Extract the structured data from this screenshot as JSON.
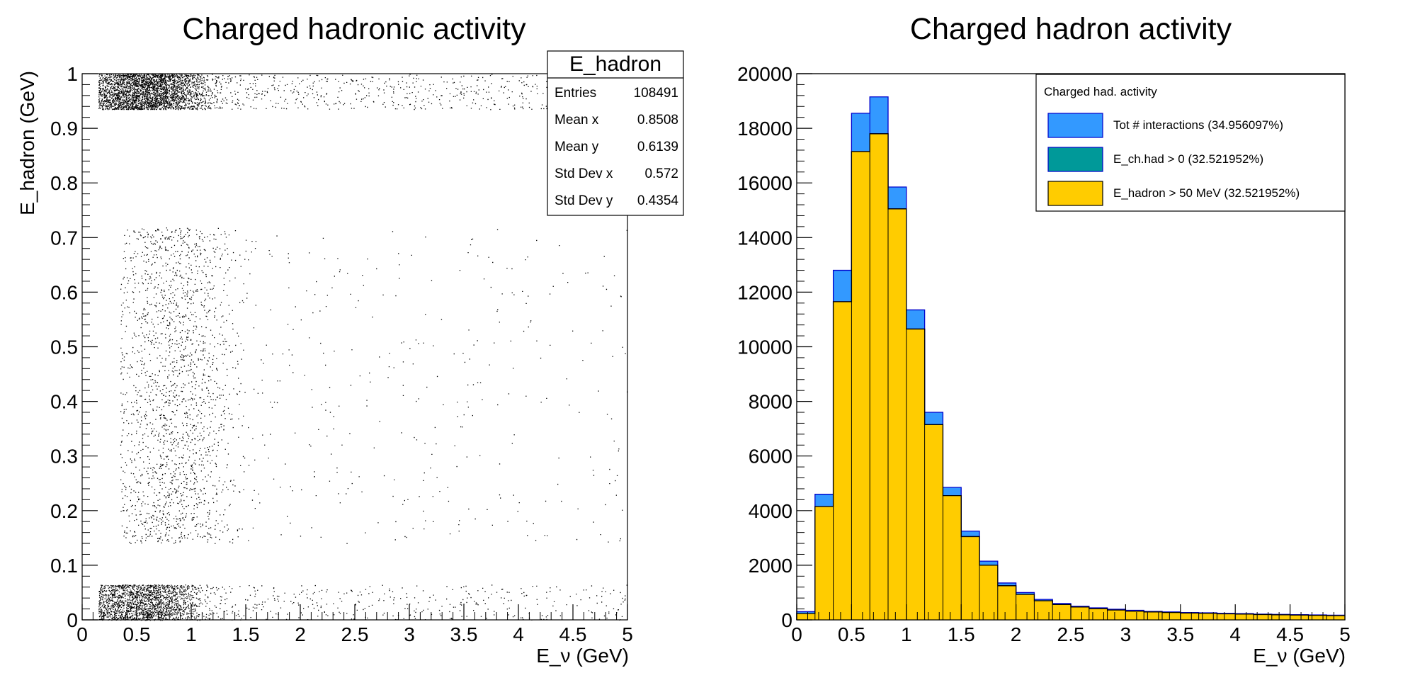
{
  "colors": {
    "total": "#3399ff",
    "ch_had": "#009999",
    "e_hadron": "#ffcc00",
    "line": "#000000",
    "marker": "#000000"
  },
  "chart_data": [
    {
      "type": "scatter",
      "title": "Charged hadronic activity",
      "xlabel": "E_ν (GeV)",
      "ylabel": "E_hadron (GeV)",
      "xlim": [
        0,
        5
      ],
      "ylim": [
        0,
        1
      ],
      "x_ticks": [
        "0",
        "0.5",
        "1",
        "1.5",
        "2",
        "2.5",
        "3",
        "3.5",
        "4",
        "4.5",
        "5"
      ],
      "y_ticks": [
        "0",
        "0.1",
        "0.2",
        "0.3",
        "0.4",
        "0.5",
        "0.6",
        "0.7",
        "0.8",
        "0.9",
        "1"
      ],
      "stats": {
        "name": "E_hadron",
        "rows": [
          {
            "label": "Entries",
            "value": "108491"
          },
          {
            "label": "Mean x",
            "value": "0.8508"
          },
          {
            "label": "Mean y",
            "value": "0.6139"
          },
          {
            "label": "Std Dev x",
            "value": "0.572"
          },
          {
            "label": "Std Dev y",
            "value": "0.4354"
          }
        ]
      },
      "density": [
        {
          "name": "upper band",
          "x_range": [
            0.15,
            5
          ],
          "y_range": [
            0.935,
            1.0
          ],
          "x_peak": 0.6,
          "weight": 6000
        },
        {
          "name": "lower band",
          "x_range": [
            0.15,
            5
          ],
          "y_range": [
            0.0,
            0.065
          ],
          "x_peak": 0.55,
          "weight": 6000
        },
        {
          "name": "mid region",
          "x_range": [
            0.35,
            5
          ],
          "y_range": [
            0.14,
            0.72
          ],
          "x_peak": 0.85,
          "weight": 2600
        }
      ]
    },
    {
      "type": "bar",
      "title": "Charged hadron activity",
      "xlabel": "E_ν (GeV)",
      "ylabel": "",
      "xlim": [
        0,
        5
      ],
      "ylim": [
        0,
        20000
      ],
      "x_ticks": [
        "0",
        "0.5",
        "1",
        "1.5",
        "2",
        "2.5",
        "3",
        "3.5",
        "4",
        "4.5",
        "5"
      ],
      "y_ticks": [
        "0",
        "2000",
        "4000",
        "6000",
        "8000",
        "10000",
        "12000",
        "14000",
        "16000",
        "18000",
        "20000"
      ],
      "bin_edges": [
        0,
        0.1667,
        0.3333,
        0.5,
        0.6667,
        0.8333,
        1.0,
        1.1667,
        1.3333,
        1.5,
        1.6667,
        1.8333,
        2.0,
        2.1667,
        2.3333,
        2.5,
        2.6667,
        2.8333,
        3.0,
        3.1667,
        3.3333,
        3.5,
        3.6667,
        3.8333,
        4.0,
        4.1667,
        4.3333,
        4.5,
        4.6667,
        4.8333,
        5.0
      ],
      "legend": {
        "header": "Charged had. activity",
        "position": "top-right"
      },
      "series": [
        {
          "name": "Tot # interactions (34.956097%)",
          "color_key": "total",
          "values": [
            300,
            4600,
            12800,
            18550,
            19150,
            15850,
            11350,
            7600,
            4850,
            3250,
            2150,
            1350,
            1000,
            750,
            600,
            500,
            440,
            390,
            350,
            310,
            290,
            270,
            260,
            240,
            230,
            210,
            200,
            190,
            180,
            170
          ]
        },
        {
          "name": "E_ch.had > 0 (32.521952%)",
          "color_key": "ch_had",
          "values": [
            230,
            4150,
            11650,
            17150,
            17800,
            15050,
            10650,
            7150,
            4550,
            3050,
            2000,
            1250,
            930,
            700,
            560,
            470,
            410,
            360,
            320,
            290,
            270,
            250,
            240,
            220,
            210,
            195,
            185,
            175,
            165,
            155
          ]
        },
        {
          "name": "E_hadron > 50 MeV (32.521952%)",
          "color_key": "e_hadron",
          "values": [
            230,
            4150,
            11650,
            17150,
            17800,
            15050,
            10650,
            7150,
            4550,
            3050,
            2000,
            1250,
            930,
            700,
            560,
            470,
            410,
            360,
            320,
            290,
            270,
            250,
            240,
            220,
            210,
            195,
            185,
            175,
            165,
            155
          ]
        }
      ]
    }
  ]
}
